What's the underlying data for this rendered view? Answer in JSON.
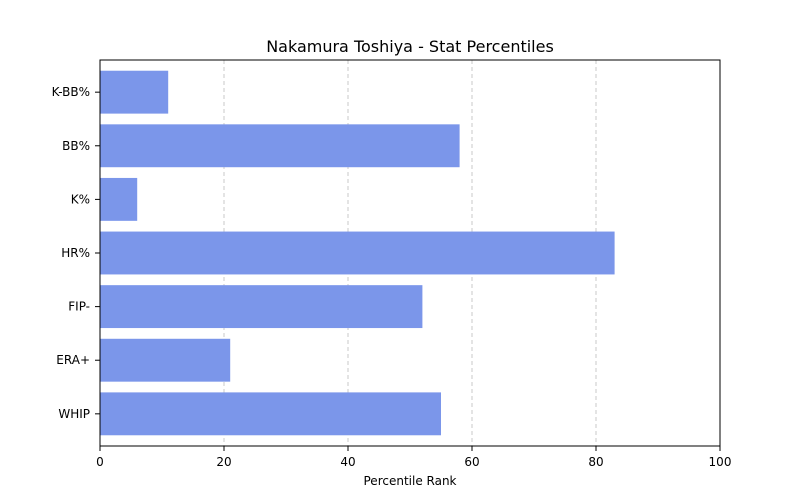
{
  "chart_data": {
    "type": "bar",
    "orientation": "horizontal",
    "title": "Nakamura Toshiya - Stat Percentiles",
    "xlabel": "Percentile Rank",
    "ylabel": "",
    "xlim": [
      0,
      100
    ],
    "x_ticks": [
      0,
      20,
      40,
      60,
      80,
      100
    ],
    "grid": "x-dashed",
    "bar_color": "#7b96ea",
    "categories": [
      "K-BB%",
      "BB%",
      "K%",
      "HR%",
      "FIP-",
      "ERA+",
      "WHIP"
    ],
    "values": [
      11,
      58,
      6,
      83,
      52,
      21,
      55
    ]
  }
}
